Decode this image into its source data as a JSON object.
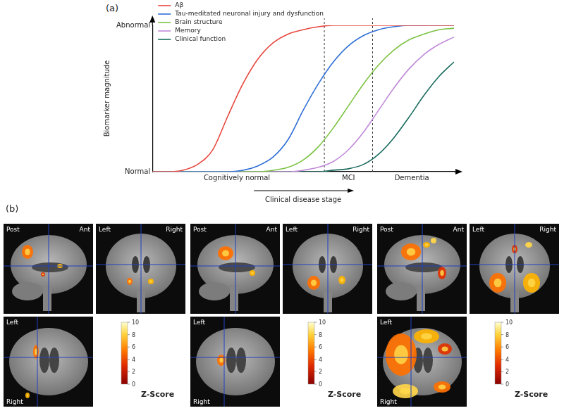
{
  "chart_data": {
    "type": "line",
    "panel_label": "(a)",
    "x": [
      0,
      5,
      10,
      15,
      20,
      25,
      30,
      35,
      40,
      45,
      50,
      55,
      60,
      65,
      70,
      75,
      80,
      85,
      90,
      95,
      100
    ],
    "series": [
      {
        "name": "Aβ",
        "color": "#e8473f",
        "values": [
          0,
          0,
          0.01,
          0.05,
          0.15,
          0.38,
          0.6,
          0.77,
          0.88,
          0.94,
          0.97,
          0.99,
          1,
          1,
          1,
          1,
          1,
          1,
          1,
          1,
          1
        ]
      },
      {
        "name": "Tau-meditated neuronal injury and dysfunction",
        "color": "#2f6fd6",
        "values": [
          0,
          0,
          0,
          0,
          0,
          0,
          0.01,
          0.04,
          0.1,
          0.22,
          0.42,
          0.6,
          0.75,
          0.86,
          0.93,
          0.97,
          0.99,
          1,
          1,
          1,
          1
        ]
      },
      {
        "name": "Brain structure",
        "color": "#7cc242",
        "values": [
          0,
          0,
          0,
          0,
          0,
          0,
          0,
          0,
          0.01,
          0.03,
          0.08,
          0.17,
          0.3,
          0.45,
          0.6,
          0.73,
          0.83,
          0.9,
          0.94,
          0.97,
          0.98
        ]
      },
      {
        "name": "Memory",
        "color": "#c08ad8",
        "values": [
          0,
          0,
          0,
          0,
          0,
          0,
          0,
          0,
          0,
          0,
          0.01,
          0.03,
          0.07,
          0.15,
          0.27,
          0.42,
          0.57,
          0.7,
          0.8,
          0.87,
          0.92
        ]
      },
      {
        "name": "Clinical function",
        "color": "#1a6b5e",
        "values": [
          0,
          0,
          0,
          0,
          0,
          0,
          0,
          0,
          0,
          0,
          0,
          0,
          0.01,
          0.02,
          0.05,
          0.12,
          0.23,
          0.37,
          0.52,
          0.65,
          0.75
        ]
      }
    ],
    "xlabel": "Clinical disease stage",
    "ylabel": "Biomarker magnitude",
    "xlim": [
      0,
      100
    ],
    "ylim": [
      0,
      1
    ],
    "xticks": [
      {
        "value": 28,
        "label": "Cognitively normal"
      },
      {
        "value": 65,
        "label": "MCI"
      },
      {
        "value": 86,
        "label": "Dementia"
      }
    ],
    "yticks": [
      {
        "value": 0,
        "label": "Normal"
      },
      {
        "value": 1,
        "label": "Abnormal"
      }
    ],
    "stage_boundaries": [
      57,
      73
    ],
    "grid": false,
    "legend": "upper left"
  },
  "panel_b": {
    "label": "(b)",
    "groups": [
      {
        "sagittal": [
          "Post",
          "Ant"
        ],
        "coronal": [
          "Left",
          "Right"
        ],
        "axial": [
          "Left",
          "Right"
        ],
        "colorbar_title": "Z-Score",
        "colorbar_range": [
          0,
          10
        ],
        "colorbar_ticks": [
          0,
          2,
          4,
          6,
          8,
          10
        ]
      },
      {
        "sagittal": [
          "Post",
          "Ant"
        ],
        "coronal": [
          "Left",
          "Right"
        ],
        "axial": [
          "Left",
          "Right"
        ],
        "colorbar_title": "Z-Score",
        "colorbar_range": [
          0,
          10
        ],
        "colorbar_ticks": [
          0,
          2,
          4,
          6,
          8,
          10
        ]
      },
      {
        "sagittal": [
          "Post",
          "Ant"
        ],
        "coronal": [
          "Left",
          "Right"
        ],
        "axial": [
          "Left",
          "Right"
        ],
        "colorbar_title": "Z-Score",
        "colorbar_range": [
          0,
          10
        ],
        "colorbar_ticks": [
          0,
          2,
          4,
          6,
          8,
          10
        ]
      }
    ]
  }
}
